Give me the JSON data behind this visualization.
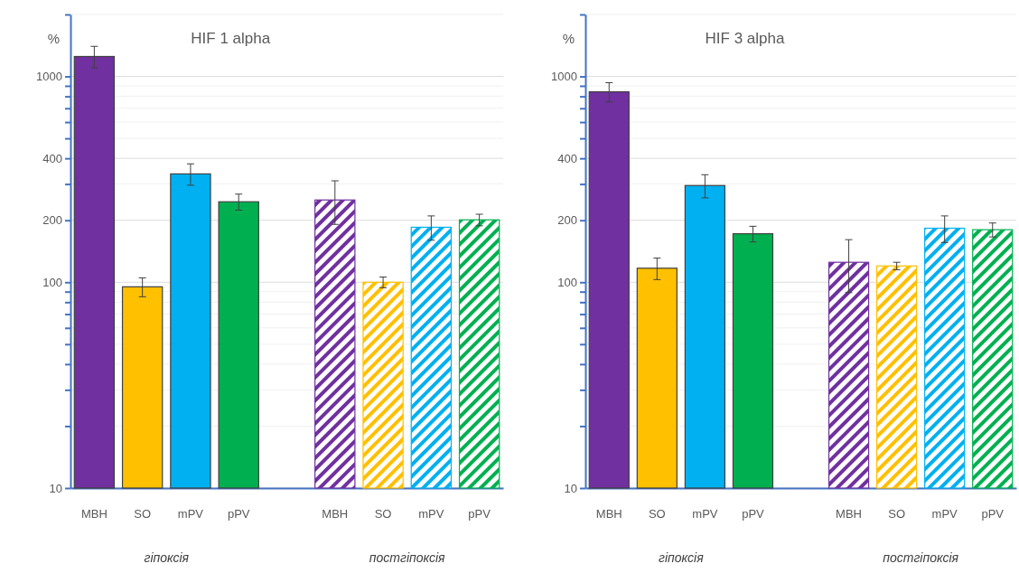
{
  "chart_data": [
    {
      "type": "bar",
      "title": "HIF 1 alpha",
      "ylabel": "%",
      "log": true,
      "grid": true,
      "categories": [
        "MBH",
        "SO",
        "mPV",
        "pPV",
        null,
        "MBH",
        "SO",
        "mPV",
        "pPV"
      ],
      "series": [
        {
          "values": [
            1250,
            95,
            336,
            246,
            null,
            null,
            null,
            null,
            null
          ],
          "colors": [
            "#7030a0",
            "#ffc000",
            "#00b0f0",
            "#00b050",
            null,
            null,
            null,
            null,
            null
          ],
          "errors": [
            150,
            10,
            40,
            22,
            null,
            null,
            null,
            null,
            null
          ]
        },
        {
          "values": [
            null,
            null,
            null,
            null,
            null,
            251,
            100,
            185,
            201
          ],
          "colors": [
            null,
            null,
            null,
            null,
            null,
            "#7030a0",
            "#ffc000",
            "#00b0f0",
            "#00b050"
          ],
          "errors": [
            null,
            null,
            null,
            null,
            null,
            60,
            6,
            25,
            13
          ]
        }
      ],
      "ylim": [
        10,
        2000
      ],
      "yticks": [
        10,
        {
          "value": 20,
          "label": null
        },
        {
          "value": 30,
          "label": null
        },
        {
          "value": 40,
          "label": null
        },
        {
          "value": 50,
          "label": null
        },
        {
          "value": 60,
          "label": null
        },
        {
          "value": 70,
          "label": null
        },
        {
          "value": 80,
          "label": null
        },
        {
          "value": 90,
          "label": null
        },
        100,
        200,
        {
          "value": 300,
          "label": null
        },
        400,
        {
          "value": 500,
          "label": null
        },
        {
          "value": 600,
          "label": null
        },
        {
          "value": 700,
          "label": null
        },
        {
          "value": 800,
          "label": null
        },
        {
          "value": 900,
          "label": null
        },
        1000,
        {
          "value": 2000,
          "label": null
        }
      ],
      "annotations": [
        "гіпоксія",
        "постгіпоксія"
      ]
    },
    {
      "type": "bar",
      "title": "HIF 3 alpha",
      "ylabel": "%",
      "log": true,
      "grid": true,
      "categories": [
        "MBH",
        "SO",
        "mPV",
        "pPV",
        null,
        "MBH",
        "SO",
        "mPV",
        "pPV"
      ],
      "series": [
        {
          "values": [
            842,
            117,
            295,
            172,
            null,
            null,
            null,
            null,
            null
          ],
          "colors": [
            "#7030a0",
            "#ffc000",
            "#00b0f0",
            "#00b050",
            null,
            null,
            null,
            null,
            null
          ],
          "errors": [
            90,
            14,
            38,
            15,
            null,
            null,
            null,
            null,
            null
          ]
        },
        {
          "values": [
            null,
            null,
            null,
            null,
            null,
            125,
            120,
            183,
            180
          ],
          "colors": [
            null,
            null,
            null,
            null,
            null,
            "#7030a0",
            "#ffc000",
            "#00b0f0",
            "#00b050"
          ],
          "errors": [
            null,
            null,
            null,
            null,
            null,
            36,
            5,
            27,
            14
          ]
        }
      ],
      "ylim": [
        10,
        2000
      ],
      "yticks": [
        10,
        {
          "value": 20,
          "label": null
        },
        {
          "value": 30,
          "label": null
        },
        {
          "value": 40,
          "label": null
        },
        {
          "value": 50,
          "label": null
        },
        {
          "value": 60,
          "label": null
        },
        {
          "value": 70,
          "label": null
        },
        {
          "value": 80,
          "label": null
        },
        {
          "value": 90,
          "label": null
        },
        100,
        200,
        {
          "value": 300,
          "label": null
        },
        400,
        {
          "value": 500,
          "label": null
        },
        {
          "value": 600,
          "label": null
        },
        {
          "value": 700,
          "label": null
        },
        {
          "value": 800,
          "label": null
        },
        {
          "value": 900,
          "label": null
        },
        1000,
        {
          "value": 2000,
          "label": null
        }
      ],
      "annotations": [
        "гіпоксія",
        "постгіпоксія"
      ]
    }
  ]
}
